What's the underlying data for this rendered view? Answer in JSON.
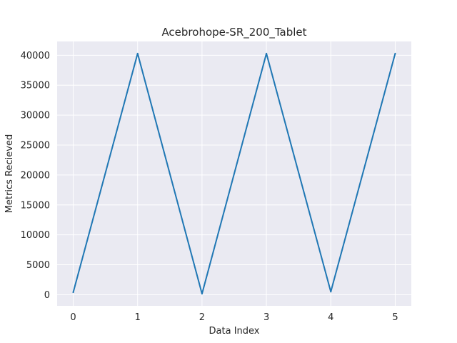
{
  "chart_data": {
    "type": "line",
    "title": "Acebrohope-SR_200_Tablet",
    "xlabel": "Data Index",
    "ylabel": "Metrics Recieved",
    "x": [
      0,
      1,
      2,
      3,
      4,
      5
    ],
    "series": [
      {
        "values": [
          400,
          40300,
          150,
          40300,
          500,
          40300
        ]
      }
    ],
    "xlim": [
      -0.25,
      5.25
    ],
    "ylim": [
      -1860,
      42310
    ],
    "xticks": [
      0,
      1,
      2,
      3,
      4,
      5
    ],
    "xtick_labels": [
      "0",
      "1",
      "2",
      "3",
      "4",
      "5"
    ],
    "yticks": [
      0,
      5000,
      10000,
      15000,
      20000,
      25000,
      30000,
      35000,
      40000
    ],
    "ytick_labels": [
      "0",
      "5000",
      "10000",
      "15000",
      "20000",
      "25000",
      "30000",
      "35000",
      "40000"
    ],
    "grid": true,
    "legend": "none"
  },
  "colors": {
    "figure_background": "#ffffff",
    "plot_background": "#eaeaf2",
    "grid": "#ffffff",
    "line": "#1f77b4",
    "text": "#262626"
  }
}
